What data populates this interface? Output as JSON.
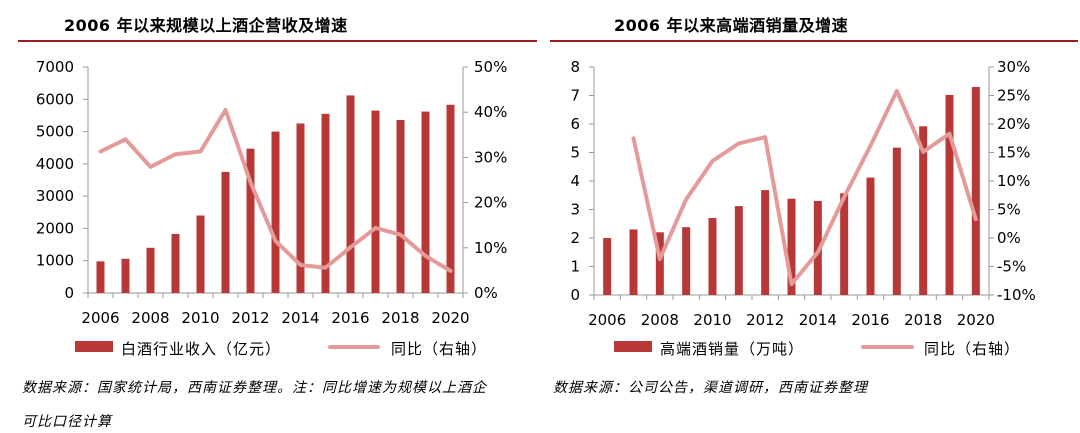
{
  "colors": {
    "bar": "#b83838",
    "line": "#e59a9a",
    "axis": "#9a9a9a",
    "rule": "#9b1c1c"
  },
  "charts": [
    {
      "title": "2006 年以来规模以上酒企营收及增速",
      "source_line1": "数据来源：国家统计局，西南证券整理。注：同比增速为规模以上酒企",
      "source_line2": "可比口径计算",
      "chart_data": {
        "type": "bar",
        "title": "2006 年以来规模以上酒企营收及增速",
        "categories": [
          2006,
          2007,
          2008,
          2009,
          2010,
          2011,
          2012,
          2013,
          2014,
          2015,
          2016,
          2017,
          2018,
          2019,
          2020
        ],
        "x_tick_labels": [
          "2006",
          "2008",
          "2010",
          "2012",
          "2014",
          "2016",
          "2018",
          "2020"
        ],
        "y_left": {
          "ylim": [
            0,
            7000
          ],
          "ticks": [
            "0",
            "1000",
            "2000",
            "3000",
            "4000",
            "5000",
            "6000",
            "7000"
          ]
        },
        "y_right": {
          "ylim": [
            0,
            50
          ],
          "ticks": [
            "0%",
            "10%",
            "20%",
            "30%",
            "40%",
            "50%"
          ]
        },
        "series": [
          {
            "name": "白酒行业收入（亿元）",
            "type": "bar",
            "axis": "left",
            "values": [
              980,
              1060,
              1400,
              1830,
              2400,
              3750,
              4470,
              5000,
              5250,
              5550,
              6120,
              5650,
              5360,
              5620,
              5830
            ]
          },
          {
            "name": "同比（右轴）",
            "type": "line",
            "axis": "right",
            "values": [
              31.3,
              34.0,
              27.9,
              30.7,
              31.3,
              40.5,
              24.5,
              11.5,
              6.2,
              5.6,
              10.1,
              14.4,
              12.9,
              8.2,
              4.9
            ]
          }
        ]
      }
    },
    {
      "title": "2006 年以来高端酒销量及增速",
      "source_line1": "数据来源：公司公告，渠道调研，西南证券整理",
      "chart_data": {
        "type": "bar",
        "title": "2006 年以来高端酒销量及增速",
        "categories": [
          2006,
          2007,
          2008,
          2009,
          2010,
          2011,
          2012,
          2013,
          2014,
          2015,
          2016,
          2017,
          2018,
          2019,
          2020
        ],
        "x_tick_labels": [
          "2006",
          "2008",
          "2010",
          "2012",
          "2014",
          "2016",
          "2018",
          "2020"
        ],
        "y_left": {
          "ylim": [
            0,
            8
          ],
          "ticks": [
            "0",
            "1",
            "2",
            "3",
            "4",
            "5",
            "6",
            "7",
            "8"
          ]
        },
        "y_right": {
          "ylim": [
            -10,
            30
          ],
          "ticks": [
            "-10%",
            "-5%",
            "0%",
            "5%",
            "10%",
            "15%",
            "20%",
            "25%",
            "30%"
          ]
        },
        "series": [
          {
            "name": "高端酒销量（万吨）",
            "type": "bar",
            "axis": "left",
            "values": [
              2.0,
              2.3,
              2.2,
              2.38,
              2.7,
              3.12,
              3.68,
              3.38,
              3.3,
              3.57,
              4.12,
              5.17,
              5.92,
              7.02,
              7.3
            ]
          },
          {
            "name": "同比（右轴）",
            "type": "line",
            "axis": "right",
            "values": [
              null,
              17.5,
              -3.7,
              6.8,
              13.5,
              16.6,
              17.7,
              -8.1,
              -2.5,
              7.2,
              16.2,
              25.8,
              15.1,
              18.3,
              3.3
            ]
          }
        ]
      }
    }
  ]
}
